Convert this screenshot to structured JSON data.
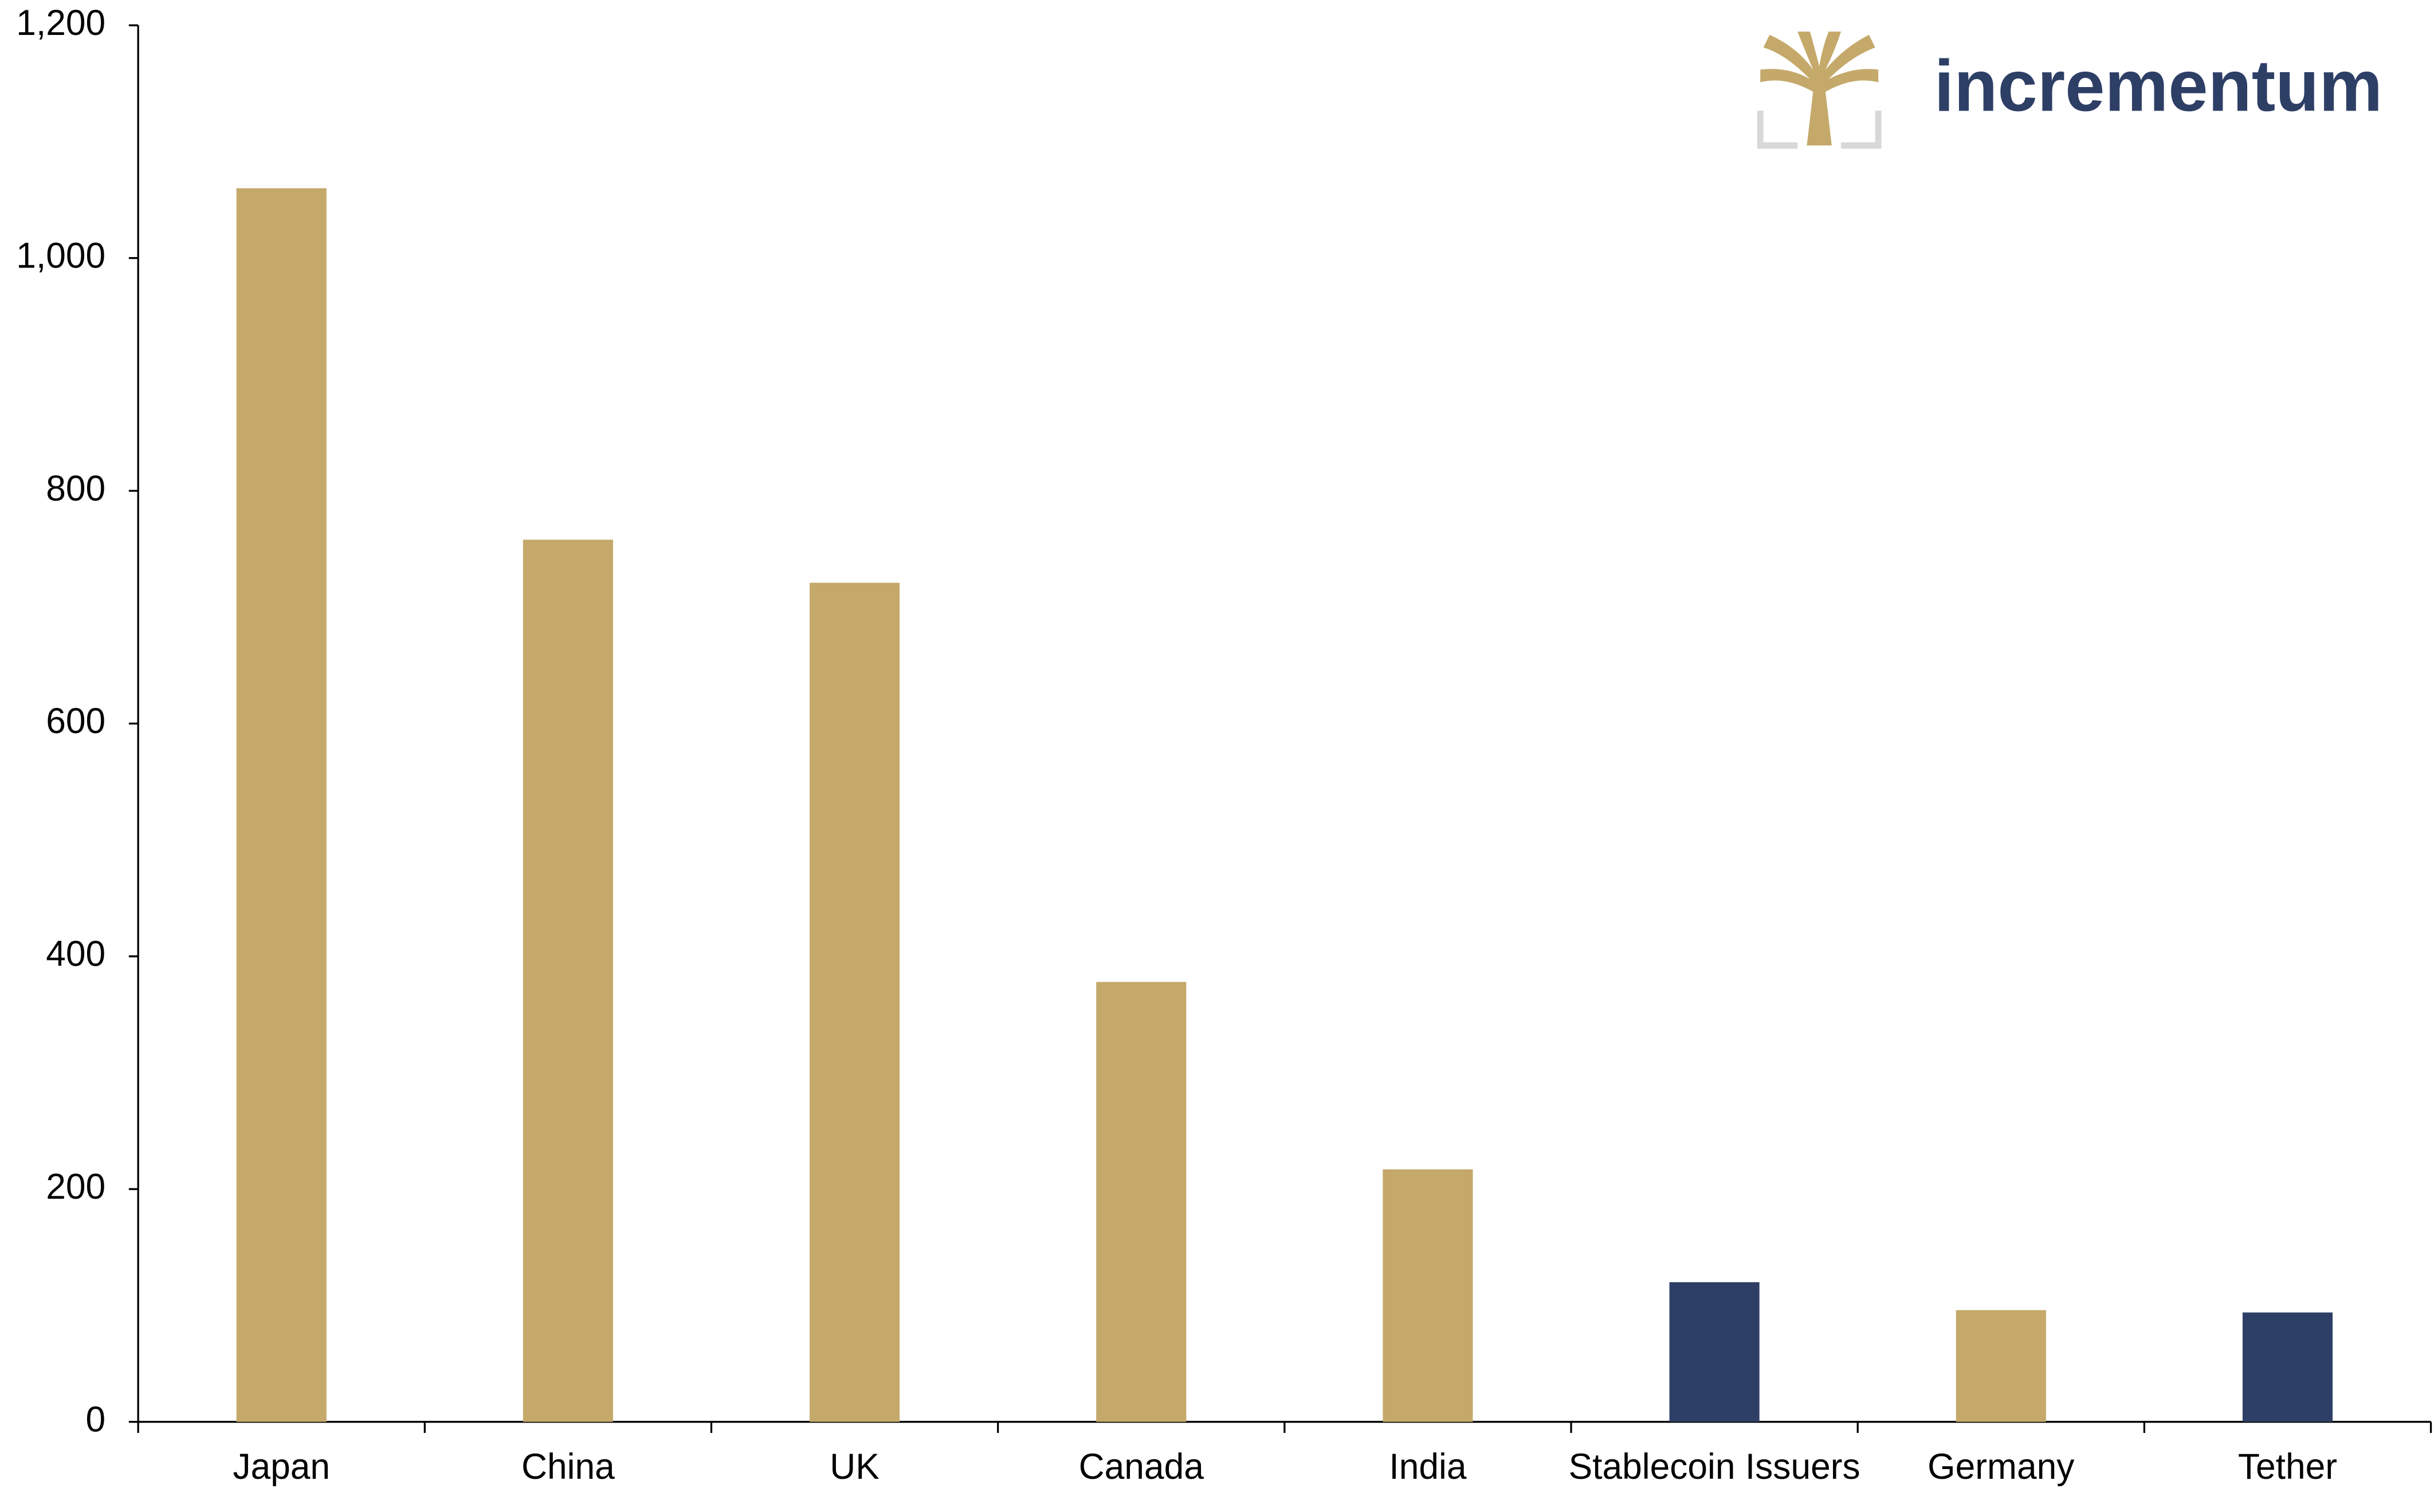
{
  "chart_data": {
    "type": "bar",
    "categories": [
      "Japan",
      "China",
      "UK",
      "Canada",
      "India",
      "Stablecoin Issuers",
      "Germany",
      "Tether"
    ],
    "values": [
      1060,
      758,
      721,
      378,
      217,
      120,
      96,
      94
    ],
    "colors": [
      "#c4a96a",
      "#c4a96a",
      "#c4a96a",
      "#c4a96a",
      "#c4a96a",
      "#2e3f66",
      "#c4a96a",
      "#2e3f66"
    ],
    "ylim": [
      0,
      1200
    ],
    "yticks": [
      0,
      200,
      400,
      600,
      800,
      {
        "value": 1000,
        "label": "1,000"
      },
      {
        "value": 1200,
        "label": "1,200"
      }
    ],
    "grid": false
  },
  "logo_text": "incrementum"
}
